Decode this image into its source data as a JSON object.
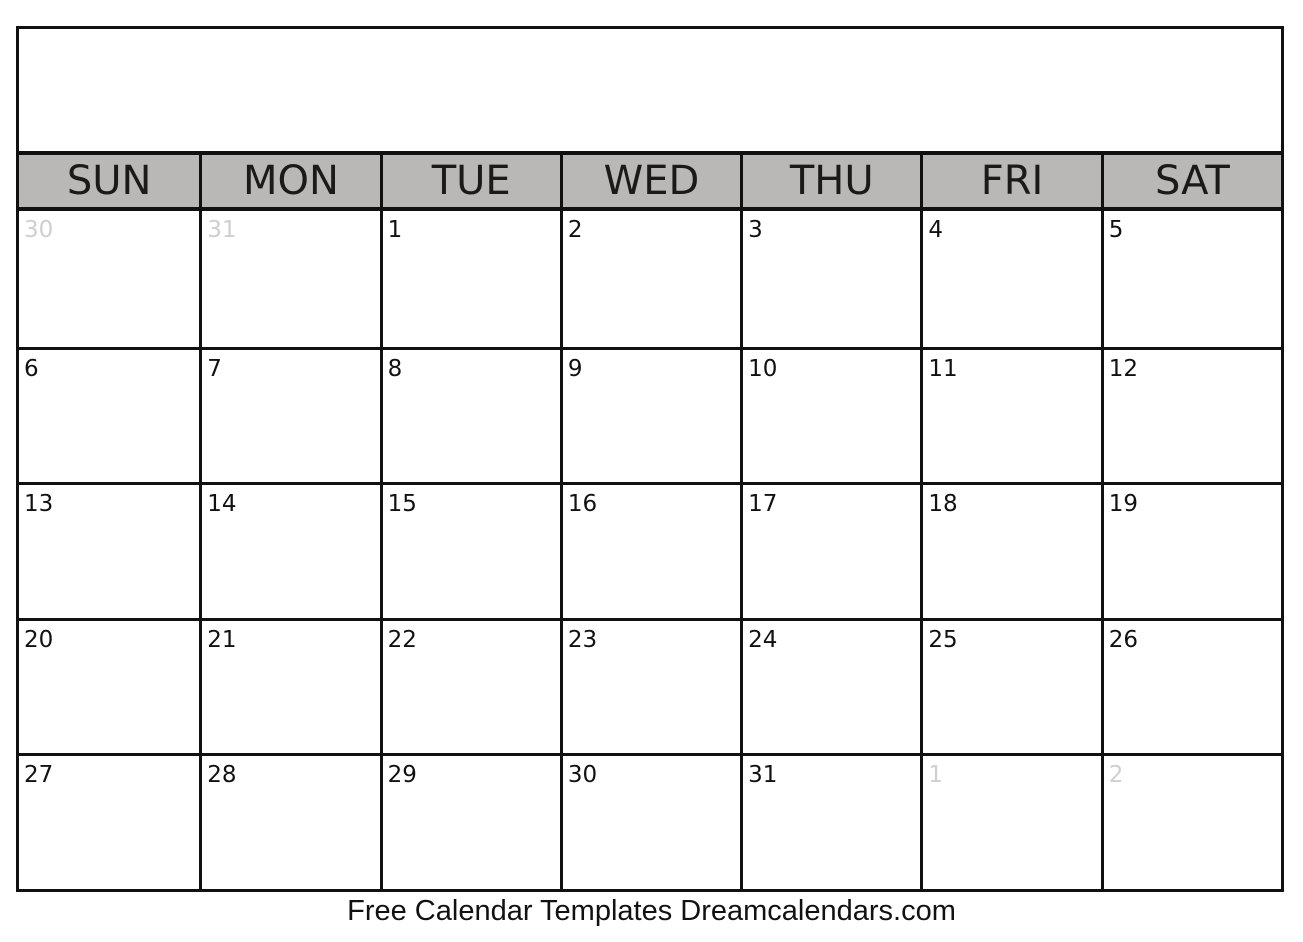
{
  "calendar": {
    "title": "",
    "weekdays": [
      "SUN",
      "MON",
      "TUE",
      "WED",
      "THU",
      "FRI",
      "SAT"
    ],
    "weeks": [
      [
        {
          "d": "30",
          "muted": true
        },
        {
          "d": "31",
          "muted": true
        },
        {
          "d": "1"
        },
        {
          "d": "2"
        },
        {
          "d": "3"
        },
        {
          "d": "4"
        },
        {
          "d": "5"
        }
      ],
      [
        {
          "d": "6"
        },
        {
          "d": "7"
        },
        {
          "d": "8"
        },
        {
          "d": "9"
        },
        {
          "d": "10"
        },
        {
          "d": "11"
        },
        {
          "d": "12"
        }
      ],
      [
        {
          "d": "13"
        },
        {
          "d": "14"
        },
        {
          "d": "15"
        },
        {
          "d": "16"
        },
        {
          "d": "17"
        },
        {
          "d": "18"
        },
        {
          "d": "19"
        }
      ],
      [
        {
          "d": "20"
        },
        {
          "d": "21"
        },
        {
          "d": "22"
        },
        {
          "d": "23"
        },
        {
          "d": "24"
        },
        {
          "d": "25"
        },
        {
          "d": "26"
        }
      ],
      [
        {
          "d": "27"
        },
        {
          "d": "28"
        },
        {
          "d": "29"
        },
        {
          "d": "30"
        },
        {
          "d": "31"
        },
        {
          "d": "1",
          "muted": true
        },
        {
          "d": "2",
          "muted": true
        }
      ]
    ],
    "colors": {
      "header_bg": "#bab8b6",
      "border": "#111111",
      "muted_text": "#cfcfcf"
    }
  },
  "footer": {
    "text": "Free Calendar Templates",
    "site": "Dreamcalendars.com"
  }
}
